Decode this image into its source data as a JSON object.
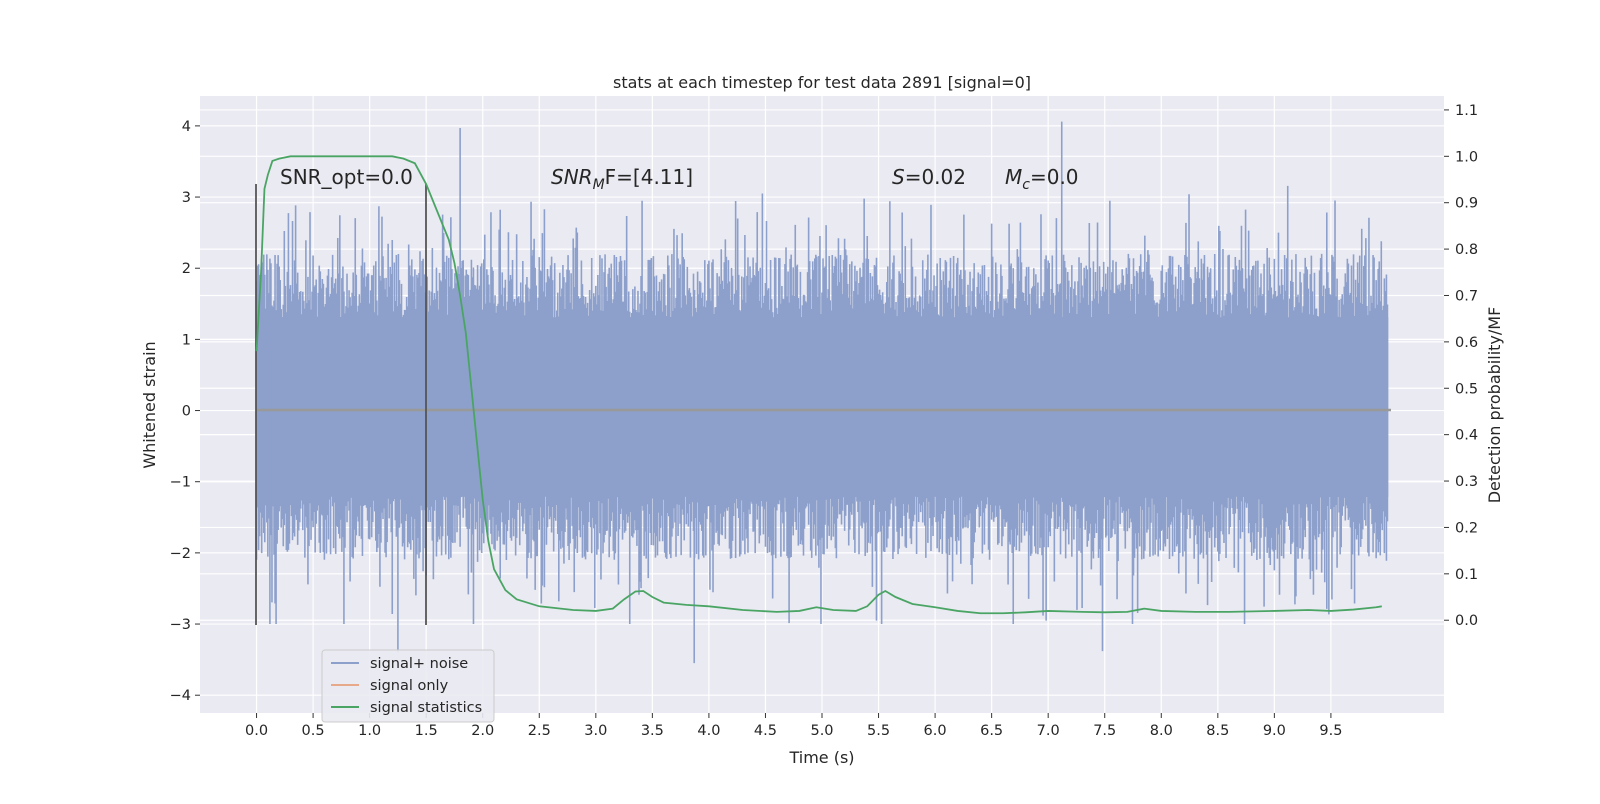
{
  "chart_data": {
    "type": "line",
    "title": "stats at each timestep for test data 2891 [signal=0]",
    "xlabel": "Time (s)",
    "ylabel": "Whitened strain",
    "ylabel_right": "Detection probability/MF",
    "xlim": [
      -0.5,
      10.5
    ],
    "ylim": [
      -4.25,
      4.42
    ],
    "ylim_right": [
      -0.2,
      1.13
    ],
    "x_ticks": [
      "0.0",
      "0.5",
      "1.0",
      "1.5",
      "2.0",
      "2.5",
      "3.0",
      "3.5",
      "4.0",
      "4.5",
      "5.0",
      "5.5",
      "6.0",
      "6.5",
      "7.0",
      "7.5",
      "8.0",
      "8.5",
      "9.0",
      "9.5"
    ],
    "y_ticks": [
      "−4",
      "−3",
      "−2",
      "−1",
      "0",
      "1",
      "2",
      "3",
      "4"
    ],
    "y_ticks_right": [
      "0.0",
      "0.1",
      "0.2",
      "0.3",
      "0.4",
      "0.5",
      "0.6",
      "0.7",
      "0.8",
      "0.9",
      "1.0",
      "1.1"
    ],
    "grid": true,
    "legend_position": "lower-left",
    "annotations": {
      "snr_opt": "SNR_opt=0.0",
      "snr_mf_prefix": "SNR",
      "snr_mf_sub": "M",
      "snr_mf_suffix": "F=[4.11]",
      "s_sym": "S",
      "s_val": "=0.02",
      "mc_sym": "M",
      "mc_sub": "c",
      "mc_val": "=0.0"
    },
    "vertical_markers": [
      0.0,
      1.5
    ],
    "series": [
      {
        "name": "signal+ noise",
        "color": "#8da0cb",
        "axis": "left",
        "time_range": [
          0.0,
          10.0
        ],
        "typical_range": [
          -1.2,
          1.3
        ],
        "peak_extremes": [
          [
            1.8,
            3.97
          ],
          [
            7.12,
            4.06
          ],
          [
            1.25,
            -3.4
          ],
          [
            3.87,
            -3.55
          ],
          [
            7.48,
            -3.38
          ]
        ]
      },
      {
        "name": "signal only",
        "color": "#e8a98a",
        "axis": "left",
        "x": [
          0.0,
          10.0
        ],
        "y": [
          0.0,
          0.0
        ]
      },
      {
        "name": "signal statistics",
        "color": "#4aa564",
        "axis": "right",
        "x": [
          0.0,
          0.04,
          0.07,
          0.1,
          0.14,
          0.2,
          0.3,
          0.5,
          0.8,
          1.0,
          1.2,
          1.3,
          1.4,
          1.5,
          1.6,
          1.7,
          1.75,
          1.8,
          1.85,
          1.9,
          1.95,
          2.0,
          2.05,
          2.1,
          2.2,
          2.3,
          2.5,
          2.8,
          3.0,
          3.15,
          3.25,
          3.35,
          3.42,
          3.5,
          3.6,
          3.8,
          4.0,
          4.3,
          4.6,
          4.8,
          4.95,
          5.1,
          5.3,
          5.4,
          5.5,
          5.56,
          5.65,
          5.8,
          6.0,
          6.2,
          6.4,
          6.6,
          6.8,
          7.0,
          7.3,
          7.5,
          7.7,
          7.85,
          8.0,
          8.3,
          8.6,
          9.0,
          9.3,
          9.5,
          9.7,
          9.9,
          9.95
        ],
        "y": [
          0.58,
          0.75,
          0.93,
          0.96,
          0.99,
          0.995,
          1.0,
          1.0,
          1.0,
          1.0,
          1.0,
          0.995,
          0.985,
          0.94,
          0.88,
          0.82,
          0.77,
          0.7,
          0.62,
          0.5,
          0.38,
          0.26,
          0.17,
          0.11,
          0.065,
          0.045,
          0.03,
          0.022,
          0.02,
          0.025,
          0.045,
          0.062,
          0.063,
          0.05,
          0.038,
          0.033,
          0.03,
          0.022,
          0.018,
          0.02,
          0.028,
          0.022,
          0.02,
          0.03,
          0.055,
          0.063,
          0.05,
          0.035,
          0.028,
          0.02,
          0.015,
          0.015,
          0.017,
          0.02,
          0.018,
          0.017,
          0.018,
          0.025,
          0.02,
          0.018,
          0.018,
          0.02,
          0.022,
          0.02,
          0.023,
          0.028,
          0.03
        ]
      }
    ]
  }
}
